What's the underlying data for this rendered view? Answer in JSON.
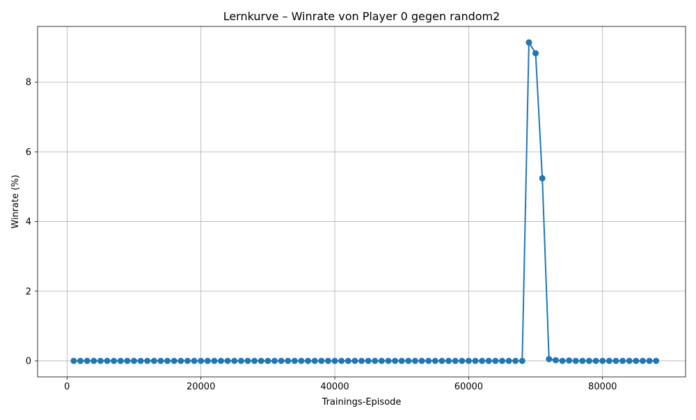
{
  "chart_data": {
    "type": "line",
    "title": "Lernkurve – Winrate von Player 0 gegen random2",
    "xlabel": "Trainings-Episode",
    "ylabel": "Winrate (%)",
    "xlim": [
      -4400,
      92400
    ],
    "ylim": [
      -0.46,
      9.6
    ],
    "xticks": [
      0,
      20000,
      40000,
      60000,
      80000
    ],
    "xtick_labels": [
      "0",
      "20000",
      "40000",
      "60000",
      "80000"
    ],
    "yticks": [
      0,
      2,
      4,
      6,
      8
    ],
    "ytick_labels": [
      "0",
      "2",
      "4",
      "6",
      "8"
    ],
    "grid": true,
    "marker": "circle",
    "colors": {
      "series": "#1f77b4"
    },
    "series": [
      {
        "x": [
          1000,
          2000,
          3000,
          4000,
          5000,
          6000,
          7000,
          8000,
          9000,
          10000,
          11000,
          12000,
          13000,
          14000,
          15000,
          16000,
          17000,
          18000,
          19000,
          20000,
          21000,
          22000,
          23000,
          24000,
          25000,
          26000,
          27000,
          28000,
          29000,
          30000,
          31000,
          32000,
          33000,
          34000,
          35000,
          36000,
          37000,
          38000,
          39000,
          40000,
          41000,
          42000,
          43000,
          44000,
          45000,
          46000,
          47000,
          48000,
          49000,
          50000,
          51000,
          52000,
          53000,
          54000,
          55000,
          56000,
          57000,
          58000,
          59000,
          60000,
          61000,
          62000,
          63000,
          64000,
          65000,
          66000,
          67000,
          68000,
          69000,
          70000,
          71000,
          72000,
          73000,
          74000,
          75000,
          76000,
          77000,
          78000,
          79000,
          80000,
          81000,
          82000,
          83000,
          84000,
          85000,
          86000,
          87000,
          88000
        ],
        "values": [
          0,
          0,
          0,
          0,
          0,
          0,
          0,
          0,
          0,
          0,
          0,
          0,
          0,
          0,
          0,
          0,
          0,
          0,
          0,
          0,
          0,
          0,
          0,
          0,
          0,
          0,
          0,
          0,
          0,
          0,
          0,
          0,
          0,
          0,
          0,
          0,
          0,
          0,
          0,
          0,
          0,
          0,
          0,
          0,
          0,
          0,
          0,
          0,
          0,
          0,
          0,
          0,
          0,
          0,
          0,
          0,
          0,
          0,
          0,
          0,
          0,
          0,
          0,
          0,
          0,
          0,
          0,
          0,
          9.14,
          8.83,
          5.24,
          0.05,
          0.02,
          0,
          0.01,
          0,
          0,
          0,
          0,
          0,
          0,
          0,
          0,
          0,
          0,
          0,
          0,
          0
        ]
      }
    ]
  }
}
